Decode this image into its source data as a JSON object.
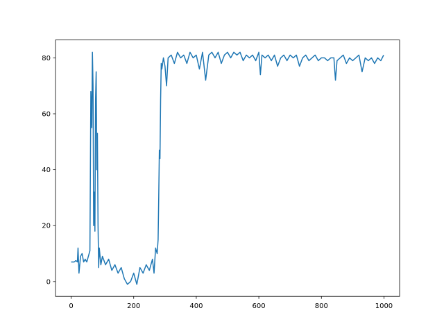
{
  "chart_data": {
    "type": "line",
    "x": [
      0,
      10,
      15,
      20,
      22,
      25,
      30,
      35,
      40,
      45,
      50,
      55,
      60,
      63,
      66,
      68,
      70,
      72,
      74,
      76,
      78,
      80,
      82,
      84,
      86,
      88,
      90,
      95,
      100,
      110,
      120,
      130,
      140,
      150,
      160,
      170,
      180,
      190,
      200,
      210,
      220,
      230,
      240,
      250,
      260,
      265,
      270,
      275,
      278,
      280,
      282,
      284,
      286,
      288,
      290,
      295,
      300,
      305,
      310,
      320,
      330,
      340,
      350,
      360,
      370,
      380,
      390,
      400,
      410,
      420,
      430,
      440,
      450,
      460,
      470,
      480,
      490,
      500,
      510,
      520,
      530,
      540,
      550,
      560,
      570,
      580,
      590,
      600,
      605,
      610,
      620,
      630,
      640,
      650,
      660,
      670,
      680,
      690,
      700,
      710,
      720,
      730,
      740,
      750,
      760,
      770,
      780,
      790,
      800,
      810,
      820,
      830,
      840,
      845,
      850,
      860,
      870,
      880,
      890,
      900,
      910,
      920,
      930,
      940,
      950,
      960,
      970,
      980,
      990,
      999
    ],
    "series": [
      {
        "color": "#1f77b4",
        "values": [
          7,
          7,
          7.5,
          7,
          12,
          3,
          9,
          10,
          7,
          8,
          7,
          9,
          11,
          68,
          55,
          82,
          70,
          20,
          32,
          18,
          65,
          75,
          40,
          53,
          20,
          5,
          12,
          6,
          9,
          6,
          8,
          4,
          6,
          3,
          5,
          1,
          -1,
          0,
          3,
          -1,
          5,
          3,
          6,
          4,
          8,
          3,
          12,
          10,
          15,
          30,
          47,
          44,
          65,
          78,
          76,
          80,
          77,
          70,
          80,
          81,
          78,
          82,
          80,
          81,
          78,
          82,
          80,
          81,
          76,
          82,
          72,
          81,
          82,
          80,
          82,
          78,
          81,
          82,
          80,
          82,
          81,
          82,
          79,
          81,
          80,
          81,
          79,
          82,
          74,
          81,
          80,
          81,
          79,
          81,
          77,
          80,
          81,
          79,
          81,
          80,
          81,
          77,
          80,
          81,
          79,
          80,
          81,
          79,
          80,
          80,
          79,
          80,
          80,
          72,
          79,
          80,
          81,
          78,
          80,
          79,
          80,
          81,
          75,
          80,
          79,
          80,
          78,
          80,
          79,
          81
        ]
      }
    ],
    "xlim": [
      -50,
      1050
    ],
    "ylim": [
      -5.3,
      86.4
    ],
    "xticks": [
      0,
      200,
      400,
      600,
      800,
      1000
    ],
    "yticks": [
      0,
      20,
      40,
      60,
      80
    ],
    "grid": false
  }
}
